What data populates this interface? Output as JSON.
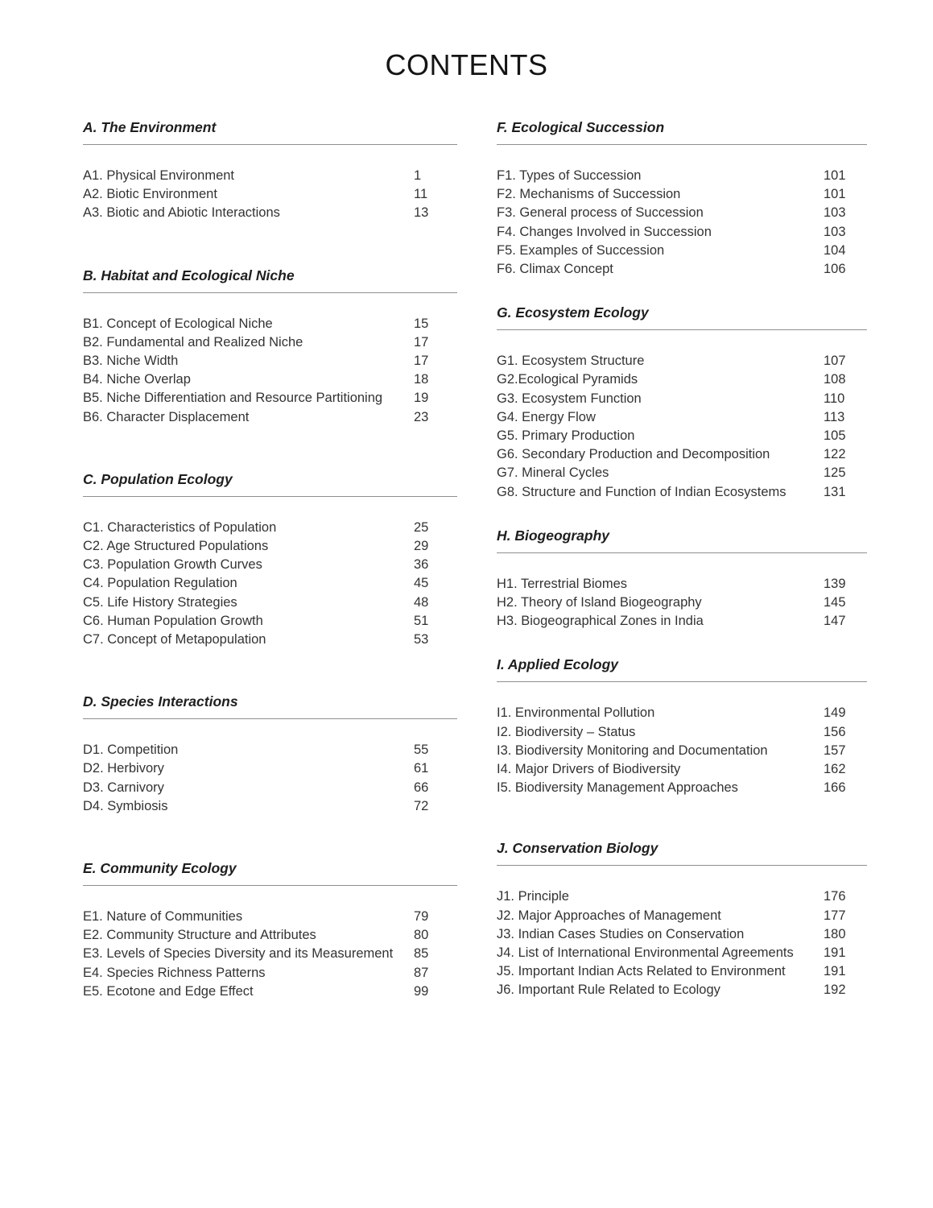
{
  "title": "CONTENTS",
  "columns": {
    "left": [
      {
        "heading": "A. The Environment",
        "items": [
          {
            "label": "A1. Physical Environment",
            "page": "1"
          },
          {
            "label": "A2. Biotic Environment",
            "page": "11"
          },
          {
            "label": "A3. Biotic and Abiotic Interactions",
            "page": "13"
          }
        ]
      },
      {
        "heading": "B. Habitat and Ecological Niche",
        "items": [
          {
            "label": "B1. Concept of Ecological Niche",
            "page": "15"
          },
          {
            "label": "B2. Fundamental and Realized Niche",
            "page": "17"
          },
          {
            "label": "B3. Niche Width",
            "page": "17"
          },
          {
            "label": "B4. Niche Overlap",
            "page": "18"
          },
          {
            "label": "B5. Niche Differentiation and Resource Partitioning",
            "page": "19"
          },
          {
            "label": "B6. Character Displacement",
            "page": "23"
          }
        ]
      },
      {
        "heading": "C. Population Ecology",
        "items": [
          {
            "label": "C1. Characteristics of Population",
            "page": "25"
          },
          {
            "label": "C2. Age Structured Populations",
            "page": "29"
          },
          {
            "label": "C3. Population Growth Curves",
            "page": "36"
          },
          {
            "label": "C4. Population Regulation",
            "page": "45"
          },
          {
            "label": "C5. Life History Strategies",
            "page": "48"
          },
          {
            "label": "C6. Human Population Growth",
            "page": "51"
          },
          {
            "label": "C7. Concept of Metapopulation",
            "page": "53"
          }
        ]
      },
      {
        "heading": "D. Species Interactions",
        "items": [
          {
            "label": "D1. Competition",
            "page": "55"
          },
          {
            "label": "D2. Herbivory",
            "page": "61"
          },
          {
            "label": "D3. Carnivory",
            "page": "66"
          },
          {
            "label": "D4. Symbiosis",
            "page": "72"
          }
        ]
      },
      {
        "heading": "E. Community Ecology",
        "items": [
          {
            "label": "E1. Nature of Communities",
            "page": "79"
          },
          {
            "label": "E2. Community Structure and Attributes",
            "page": "80"
          },
          {
            "label": "E3. Levels of Species Diversity and its Measurement",
            "page": "85"
          },
          {
            "label": "E4. Species Richness Patterns",
            "page": "87"
          },
          {
            "label": "E5. Ecotone and Edge Effect",
            "page": "99"
          }
        ]
      }
    ],
    "right": [
      {
        "heading": "F. Ecological Succession",
        "items": [
          {
            "label": "F1. Types of Succession",
            "page": "101"
          },
          {
            "label": "F2. Mechanisms of Succession",
            "page": "101"
          },
          {
            "label": "F3. General process of Succession",
            "page": "103"
          },
          {
            "label": "F4. Changes Involved in Succession",
            "page": "103"
          },
          {
            "label": "F5. Examples of Succession",
            "page": "104"
          },
          {
            "label": "F6. Climax Concept",
            "page": "106"
          }
        ]
      },
      {
        "heading": "G. Ecosystem Ecology",
        "items": [
          {
            "label": "G1. Ecosystem Structure",
            "page": "107"
          },
          {
            "label": "G2.Ecological Pyramids",
            "page": "108"
          },
          {
            "label": "G3. Ecosystem Function",
            "page": "110"
          },
          {
            "label": "G4. Energy Flow",
            "page": "113"
          },
          {
            "label": "G5. Primary Production",
            "page": "105"
          },
          {
            "label": "G6. Secondary Production and Decomposition",
            "page": "122"
          },
          {
            "label": "G7. Mineral Cycles",
            "page": "125"
          },
          {
            "label": "G8. Structure and Function of Indian Ecosystems",
            "page": "131"
          }
        ]
      },
      {
        "heading": "H. Biogeography",
        "items": [
          {
            "label": "H1. Terrestrial Biomes",
            "page": "139"
          },
          {
            "label": "H2. Theory of Island Biogeography",
            "page": "145"
          },
          {
            "label": "H3. Biogeographical Zones in India",
            "page": "147"
          }
        ]
      },
      {
        "heading": "I. Applied Ecology",
        "items": [
          {
            "label": "I1. Environmental Pollution",
            "page": "149"
          },
          {
            "label": "I2. Biodiversity – Status",
            "page": "156"
          },
          {
            "label": "I3. Biodiversity Monitoring and Documentation",
            "page": "157"
          },
          {
            "label": "I4. Major Drivers of Biodiversity",
            "page": "162"
          },
          {
            "label": "I5. Biodiversity Management Approaches",
            "page": "166"
          }
        ]
      },
      {
        "heading": "J. Conservation Biology",
        "items": [
          {
            "label": "J1. Principle",
            "page": "176"
          },
          {
            "label": "J2. Major Approaches of Management",
            "page": "177"
          },
          {
            "label": "J3. Indian Cases Studies on Conservation",
            "page": "180"
          },
          {
            "label": "J4. List of International Environmental Agreements",
            "page": "191"
          },
          {
            "label": "J5. Important Indian Acts Related to Environment",
            "page": "191"
          },
          {
            "label": "J6. Important Rule Related to Ecology",
            "page": "192"
          }
        ]
      }
    ]
  }
}
